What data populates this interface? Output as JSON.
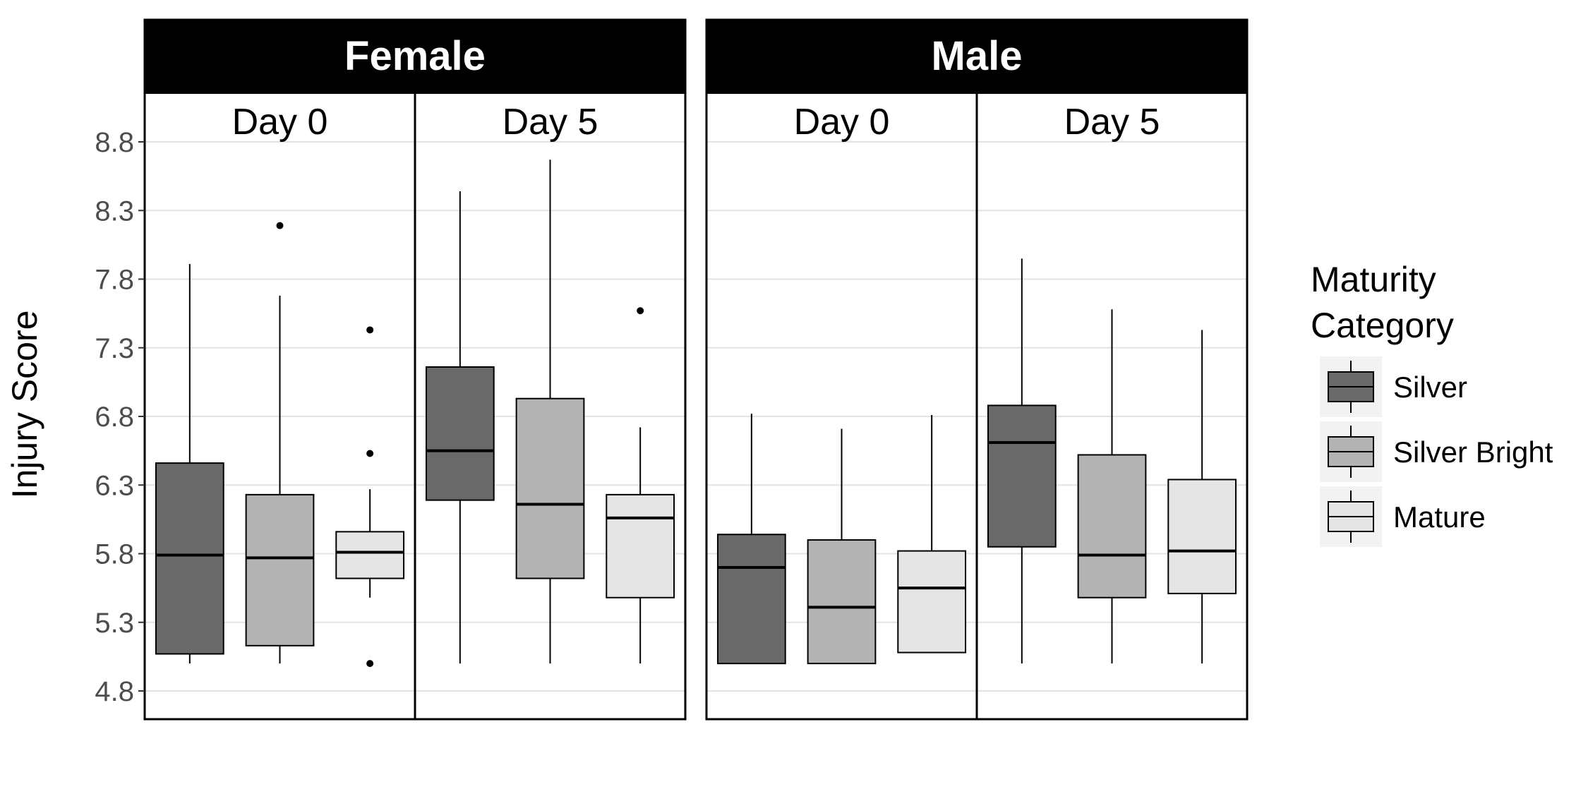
{
  "chart_data": {
    "type": "boxplot",
    "ylabel": "Injury Score",
    "y_ticks": [
      4.8,
      5.3,
      5.8,
      6.3,
      6.8,
      7.3,
      7.8,
      8.3,
      8.8
    ],
    "ylim": [
      4.6,
      9.15
    ],
    "grid": true,
    "legend": {
      "title_line1": "Maturity",
      "title_line2": "Category",
      "placement": "right",
      "items": [
        {
          "label": "Silver",
          "color": "#696969"
        },
        {
          "label": "Silver Bright",
          "color": "#b3b3b3"
        },
        {
          "label": "Mature",
          "color": "#e5e5e5"
        }
      ]
    },
    "facets": [
      {
        "sex": "Female",
        "panels": [
          {
            "day": "Day 0",
            "boxes": [
              {
                "category": "Silver",
                "whisker_low": 5.0,
                "q1": 5.07,
                "median": 5.79,
                "q3": 6.46,
                "whisker_high": 7.91,
                "outliers": []
              },
              {
                "category": "Silver Bright",
                "whisker_low": 5.0,
                "q1": 5.13,
                "median": 5.77,
                "q3": 6.23,
                "whisker_high": 7.68,
                "outliers": [
                  8.19
                ]
              },
              {
                "category": "Mature",
                "whisker_low": 5.48,
                "q1": 5.62,
                "median": 5.81,
                "q3": 5.96,
                "whisker_high": 6.27,
                "outliers": [
                  7.43,
                  6.53,
                  5.0
                ]
              }
            ]
          },
          {
            "day": "Day 5",
            "boxes": [
              {
                "category": "Silver",
                "whisker_low": 5.0,
                "q1": 6.19,
                "median": 6.55,
                "q3": 7.16,
                "whisker_high": 8.44,
                "outliers": []
              },
              {
                "category": "Silver Bright",
                "whisker_low": 5.0,
                "q1": 5.62,
                "median": 6.16,
                "q3": 6.93,
                "whisker_high": 8.67,
                "outliers": []
              },
              {
                "category": "Mature",
                "whisker_low": 5.0,
                "q1": 5.48,
                "median": 6.06,
                "q3": 6.23,
                "whisker_high": 6.72,
                "outliers": [
                  7.57
                ]
              }
            ]
          }
        ]
      },
      {
        "sex": "Male",
        "panels": [
          {
            "day": "Day 0",
            "boxes": [
              {
                "category": "Silver",
                "whisker_low": 5.0,
                "q1": 5.0,
                "median": 5.7,
                "q3": 5.94,
                "whisker_high": 6.82,
                "outliers": []
              },
              {
                "category": "Silver Bright",
                "whisker_low": 5.0,
                "q1": 5.0,
                "median": 5.41,
                "q3": 5.9,
                "whisker_high": 6.71,
                "outliers": []
              },
              {
                "category": "Mature",
                "whisker_low": 5.08,
                "q1": 5.08,
                "median": 5.55,
                "q3": 5.82,
                "whisker_high": 6.81,
                "outliers": []
              }
            ]
          },
          {
            "day": "Day 5",
            "boxes": [
              {
                "category": "Silver",
                "whisker_low": 5.0,
                "q1": 5.85,
                "median": 6.61,
                "q3": 6.88,
                "whisker_high": 7.95,
                "outliers": []
              },
              {
                "category": "Silver Bright",
                "whisker_low": 5.0,
                "q1": 5.48,
                "median": 5.79,
                "q3": 6.52,
                "whisker_high": 7.58,
                "outliers": []
              },
              {
                "category": "Mature",
                "whisker_low": 5.0,
                "q1": 5.51,
                "median": 5.82,
                "q3": 6.34,
                "whisker_high": 7.43,
                "outliers": []
              }
            ]
          }
        ]
      }
    ]
  }
}
